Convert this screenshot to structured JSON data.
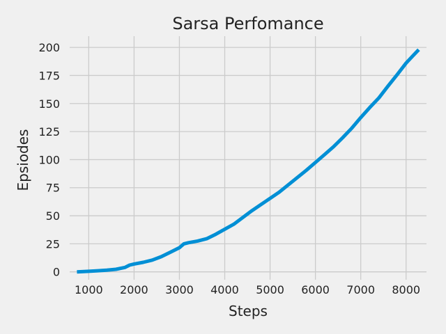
{
  "chart_data": {
    "type": "line",
    "title": "Sarsa Perfomance",
    "xlabel": "Steps",
    "ylabel": "Epsiodes",
    "xlim": [
      580,
      8450
    ],
    "ylim": [
      -7,
      210
    ],
    "x_ticks": [
      1000,
      2000,
      3000,
      4000,
      5000,
      6000,
      7000,
      8000
    ],
    "y_ticks": [
      0,
      25,
      50,
      75,
      100,
      125,
      150,
      175,
      200
    ],
    "grid": true,
    "colors": {
      "background": "#f0f0f0",
      "grid": "#cbcbcb",
      "line": "#008fd5"
    },
    "series": [
      {
        "x": [
          740,
          1000,
          1200,
          1400,
          1600,
          1800,
          1900,
          2000,
          2200,
          2400,
          2600,
          2800,
          3000,
          3100,
          3200,
          3400,
          3600,
          3800,
          4000,
          4200,
          4400,
          4600,
          4800,
          5000,
          5200,
          5400,
          5600,
          5800,
          6000,
          6200,
          6400,
          6600,
          6800,
          7000,
          7200,
          7400,
          7600,
          7800,
          8000,
          8150,
          8280
        ],
        "y": [
          0,
          0.5,
          1,
          1.5,
          2.3,
          4,
          6,
          7,
          8.5,
          10.5,
          13.5,
          17.5,
          21.5,
          25,
          26,
          27.5,
          29.5,
          33.5,
          38,
          42.5,
          48.5,
          54.5,
          60,
          65.5,
          71,
          77.5,
          84,
          90.5,
          97.5,
          104.5,
          111.5,
          119.5,
          128,
          137.5,
          146.5,
          155,
          165.5,
          175.5,
          186,
          192.5,
          198
        ]
      }
    ]
  }
}
